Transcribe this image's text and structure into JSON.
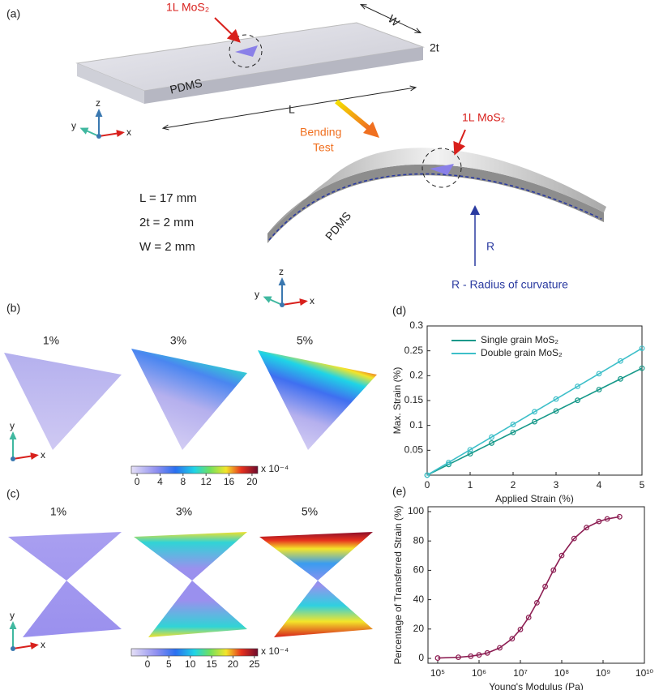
{
  "panel_labels": [
    "(a)",
    "(b)",
    "(c)"
  ],
  "schematic": {
    "material_label": "1L MoS₂",
    "substrate_label": "PDMS",
    "dimension_labels": [
      "W",
      "2t",
      "L"
    ],
    "process_label": [
      "Bending",
      "Test"
    ],
    "parameters": [
      "L = 17 mm",
      "2t = 2 mm",
      "W = 2 mm"
    ],
    "radius_label": "R",
    "radius_caption": "R - Radius of curvature",
    "axes": [
      "x",
      "y",
      "z"
    ]
  },
  "strain_maps": [
    {
      "strains": [
        "1%",
        "3%",
        "5%"
      ],
      "colorbar": {
        "lim": [
          -1,
          21
        ],
        "ticks": [
          0,
          4,
          8,
          12,
          16,
          20
        ],
        "multiplier": "x 10⁻⁴"
      }
    },
    {
      "strains": [
        "1%",
        "3%",
        "5%"
      ],
      "colorbar": {
        "lim": [
          -3.8,
          25.8
        ],
        "ticks": [
          0,
          5,
          10,
          15,
          20,
          25
        ],
        "multiplier": "x 10⁻⁴"
      }
    }
  ],
  "chart_data": [
    {
      "type": "line",
      "panel_label": "(d)",
      "x_label": "Applied Strain (%)",
      "y_label": "Max. Strain (%)",
      "x": [
        0,
        0.5,
        1,
        1.5,
        2,
        2.5,
        3,
        3.5,
        4,
        4.5,
        5
      ],
      "series": [
        {
          "name": "Single grain MoS₂",
          "color": "#17998a",
          "values": [
            0,
            0.0215,
            0.043,
            0.0645,
            0.086,
            0.1075,
            0.129,
            0.1505,
            0.172,
            0.1935,
            0.215
          ]
        },
        {
          "name": "Double grain MoS₂",
          "color": "#3dbfc9",
          "values": [
            0,
            0.0255,
            0.051,
            0.0765,
            0.102,
            0.1275,
            0.153,
            0.1785,
            0.204,
            0.2295,
            0.255
          ]
        }
      ],
      "xlim": [
        0,
        5
      ],
      "ylim": [
        0,
        0.3
      ],
      "xticks": [
        0,
        1,
        2,
        3,
        4,
        5
      ],
      "yticks": [
        0.05,
        0.1,
        0.15,
        0.2,
        0.25,
        0.3
      ],
      "legend": "upper left"
    },
    {
      "type": "line",
      "panel_label": "(e)",
      "x_label": "Young's Modulus (Pa)",
      "y_label": "Percentage of Transferred Strain (%)",
      "x_scale": "log",
      "x": [
        100000,
        316228,
        630957,
        1000000,
        1584893,
        3162278,
        6309573,
        10000000,
        15848932,
        25118864,
        39810717,
        63095734,
        100000000,
        199526231,
        398107171,
        794328235,
        1258925412,
        2511886432
      ],
      "series": [
        {
          "name": null,
          "color": "#8c1d52",
          "values": [
            0.25,
            0.77,
            1.5,
            2.4,
            3.7,
            7.2,
            13.4,
            19.7,
            27.9,
            37.9,
            49,
            60.1,
            70.1,
            81.7,
            89.1,
            93.3,
            95,
            96.5
          ]
        }
      ],
      "xlim": [
        58210,
        10000000000
      ],
      "ylim": [
        -3.3,
        103.3
      ],
      "xticks": [
        {
          "value": 100000,
          "label": "10⁵"
        },
        {
          "value": 1000000,
          "label": "10⁶"
        },
        {
          "value": 10000000,
          "label": "10⁷"
        },
        {
          "value": 100000000,
          "label": "10⁸"
        },
        {
          "value": 1000000000,
          "label": "10⁹"
        },
        {
          "value": 10000000000,
          "label": "10¹⁰"
        }
      ],
      "yticks": [
        0,
        20,
        40,
        60,
        80,
        100
      ]
    }
  ]
}
